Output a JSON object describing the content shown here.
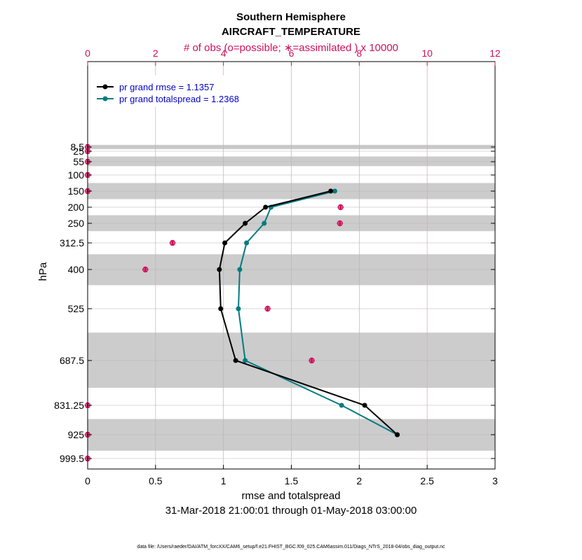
{
  "chart_data": {
    "type": "line",
    "title": "Southern Hemisphere",
    "subtitle": "AIRCRAFT_TEMPERATURE",
    "top_axis_label": "# of obs (o=possible; ∗=assimilated ) x 10000",
    "xlabel": "rmse and totalspread",
    "ylabel": "hPa",
    "date_range": "31-Mar-2018 21:00:01 through 01-May-2018 03:00:00",
    "footer": "data file: /Users/raeder/DAI/ATM_forcXX/CAM6_setup/f.e21.FHIST_BGC.f09_025.CAM6assim.011/Diags_NTrS_2018-04/obs_diag_output.nc",
    "xlim": [
      0,
      3
    ],
    "x_ticks": [
      0,
      0.5,
      1,
      1.5,
      2,
      2.5,
      3
    ],
    "x_tick_labels": [
      "0",
      "0.5",
      "1",
      "1.5",
      "2",
      "2.5",
      "3"
    ],
    "top_xlim": [
      0,
      12
    ],
    "top_ticks": [
      0,
      2,
      4,
      6,
      8,
      10,
      12
    ],
    "top_tick_labels": [
      "0",
      "2",
      "4",
      "6",
      "8",
      "10",
      "12"
    ],
    "levels": [
      8.5,
      25,
      55,
      100,
      150,
      200,
      250,
      312.5,
      400,
      525,
      687.5,
      831.25,
      925,
      999.5
    ],
    "level_labels": [
      "8.5",
      "25",
      "55",
      "100",
      "150",
      "200",
      "250",
      "312.5",
      "400",
      "525",
      "687.5",
      "831.25",
      "925",
      "999.5"
    ],
    "shaded_layers": [
      [
        0,
        17
      ],
      [
        40,
        70
      ],
      [
        125,
        175
      ],
      [
        225,
        275
      ],
      [
        350,
        450
      ],
      [
        600,
        775
      ],
      [
        875,
        975
      ]
    ],
    "grid": true,
    "series": [
      {
        "name": "rmse",
        "legend": "pr grand rmse = 1.1357",
        "color": "#000000",
        "levels": [
          150,
          200,
          250,
          312.5,
          400,
          525,
          687.5,
          831.25,
          925
        ],
        "values": [
          1.79,
          1.31,
          1.16,
          1.01,
          0.97,
          0.98,
          1.09,
          2.04,
          2.28
        ]
      },
      {
        "name": "totalspread",
        "legend": "pr grand totalspread = 1.2368",
        "color": "#007b80",
        "levels": [
          150,
          200,
          250,
          312.5,
          400,
          525,
          687.5,
          831.25,
          925
        ],
        "values": [
          1.82,
          1.35,
          1.3,
          1.17,
          1.12,
          1.11,
          1.16,
          1.87,
          2.28
        ]
      }
    ],
    "obs_counts": {
      "color": "#d0105a",
      "levels": [
        8.5,
        25,
        55,
        100,
        150,
        200,
        250,
        312.5,
        400,
        525,
        687.5,
        831.25,
        925,
        999.5
      ],
      "possible": [
        0,
        0,
        0,
        0,
        0,
        7.45,
        7.43,
        2.5,
        1.7,
        5.3,
        6.6,
        0,
        0,
        0
      ],
      "assimilated": [
        0,
        0,
        0,
        0,
        0,
        7.45,
        7.43,
        2.5,
        1.7,
        5.3,
        6.6,
        0,
        0,
        0
      ]
    }
  }
}
